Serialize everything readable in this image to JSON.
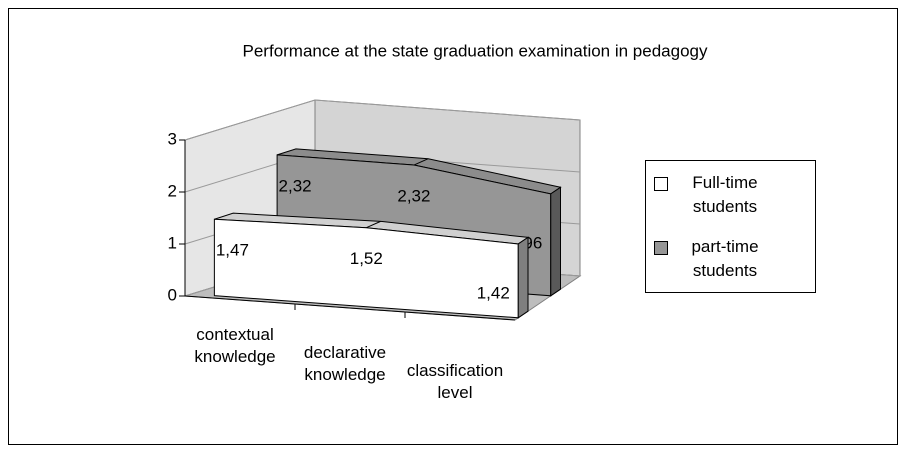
{
  "chart_data": {
    "type": "line",
    "title": "Performance at the state graduation examination in pedagogy",
    "categories": [
      "contextual knowledge",
      "declarative knowledge",
      "classification level"
    ],
    "series": [
      {
        "name": "Full-time students",
        "color": "#ffffff",
        "values": [
          1.47,
          1.52,
          1.42
        ],
        "value_labels": [
          "1,47",
          "1,52",
          "1,42"
        ]
      },
      {
        "name": "part-time students",
        "color": "#969696",
        "values": [
          2.32,
          2.32,
          1.96
        ],
        "value_labels": [
          "2,32",
          "2,32",
          "1,96"
        ]
      }
    ],
    "ylim": [
      0,
      3
    ],
    "yticks": [
      0,
      1,
      2,
      3
    ],
    "grid": true,
    "legend": "right"
  }
}
